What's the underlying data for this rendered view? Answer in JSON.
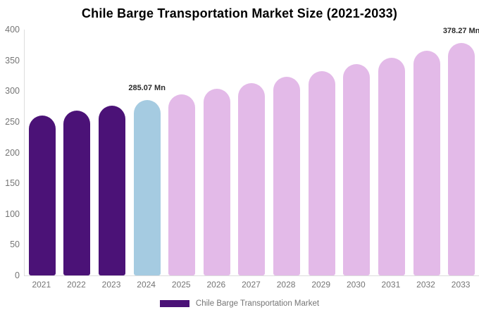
{
  "title": "Chile Barge Transportation Market Size (2021-2033)",
  "legend": {
    "label": "Chile Barge Transportation Market"
  },
  "colors": {
    "historical": "#4B1277",
    "current": "#A5CBE1",
    "forecast": "#E3BAE8",
    "axis_line": "#DDDDDD",
    "axis_text": "#757575",
    "title_text": "#000000",
    "value_label_text": "#2B2B2B"
  },
  "chart_data": {
    "type": "bar",
    "title": "Chile Barge Transportation Market Size (2021-2033)",
    "series_name": "Chile Barge Transportation Market",
    "unit": "Mn",
    "categories": [
      "2021",
      "2022",
      "2023",
      "2024",
      "2025",
      "2026",
      "2027",
      "2028",
      "2029",
      "2030",
      "2031",
      "2032",
      "2033"
    ],
    "values": [
      259.62,
      267.81,
      276.26,
      285.07,
      294.06,
      303.34,
      312.91,
      322.78,
      332.96,
      343.47,
      354.3,
      365.48,
      378.27
    ],
    "bar_color_roles": [
      "historical",
      "historical",
      "historical",
      "current",
      "forecast",
      "forecast",
      "forecast",
      "forecast",
      "forecast",
      "forecast",
      "forecast",
      "forecast",
      "forecast"
    ],
    "data_labels": {
      "2024": "285.07 Mn",
      "2033": "378.27 Mn"
    },
    "xlabel": "",
    "ylabel": "",
    "ylim": [
      0,
      400
    ],
    "yticks": [
      0,
      50,
      100,
      150,
      200,
      250,
      300,
      350,
      400
    ],
    "grid": false,
    "legend_position": "bottom"
  }
}
